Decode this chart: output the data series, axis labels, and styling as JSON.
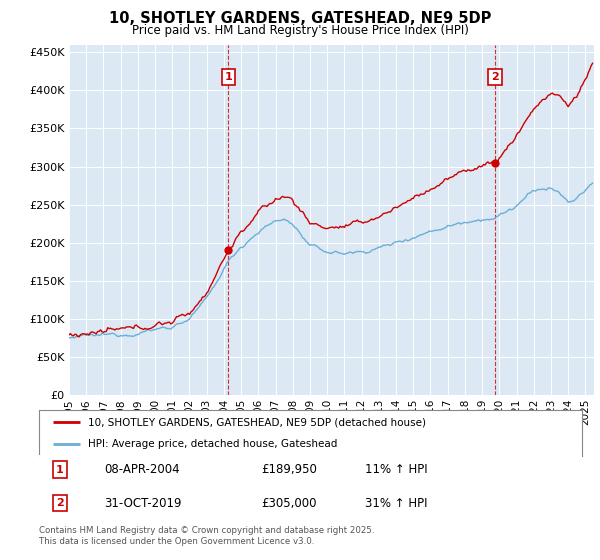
{
  "title": "10, SHOTLEY GARDENS, GATESHEAD, NE9 5DP",
  "subtitle": "Price paid vs. HM Land Registry's House Price Index (HPI)",
  "ylim": [
    0,
    460000
  ],
  "yticks": [
    0,
    50000,
    100000,
    150000,
    200000,
    250000,
    300000,
    350000,
    400000,
    450000
  ],
  "ytick_labels": [
    "£0",
    "£50K",
    "£100K",
    "£150K",
    "£200K",
    "£250K",
    "£300K",
    "£350K",
    "£400K",
    "£450K"
  ],
  "background_color": "#dce9f5",
  "hpi_color": "#6baed6",
  "price_color": "#cc0000",
  "legend_line1": "10, SHOTLEY GARDENS, GATESHEAD, NE9 5DP (detached house)",
  "legend_line2": "HPI: Average price, detached house, Gateshead",
  "footer": "Contains HM Land Registry data © Crown copyright and database right 2025.\nThis data is licensed under the Open Government Licence v3.0.",
  "xstart_year": 1995,
  "xend_year": 2025,
  "sale1_month": 111,
  "sale1_price": 189950,
  "sale2_month": 297,
  "sale2_price": 305000,
  "ann1_date": "08-APR-2004",
  "ann1_price": "£189,950",
  "ann1_hpi": "11% ↑ HPI",
  "ann2_date": "31-OCT-2019",
  "ann2_price": "£305,000",
  "ann2_hpi": "31% ↑ HPI"
}
